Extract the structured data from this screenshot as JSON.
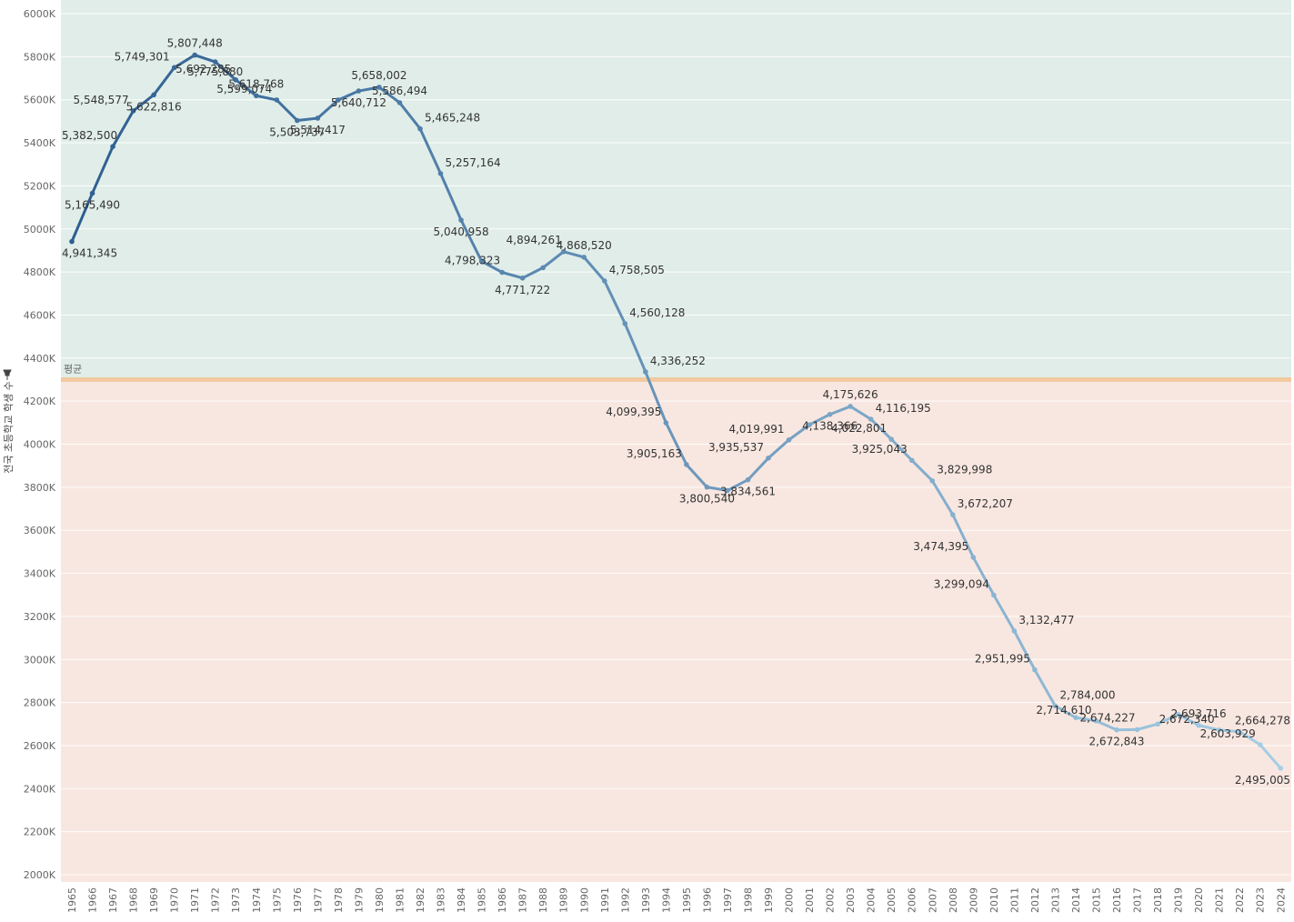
{
  "chart_data": {
    "type": "line",
    "title": "",
    "xlabel": "",
    "ylabel": "전국 초등학교 학생 수",
    "ylim": [
      2000000,
      6000000
    ],
    "reference_line": {
      "label": "평균",
      "value": 4300000
    },
    "x": [
      1965,
      1966,
      1967,
      1968,
      1969,
      1970,
      1971,
      1972,
      1973,
      1974,
      1975,
      1976,
      1977,
      1978,
      1979,
      1980,
      1981,
      1982,
      1983,
      1984,
      1985,
      1986,
      1987,
      1988,
      1989,
      1990,
      1991,
      1992,
      1993,
      1994,
      1995,
      1996,
      1997,
      1998,
      1999,
      2000,
      2001,
      2002,
      2003,
      2004,
      2005,
      2006,
      2007,
      2008,
      2009,
      2010,
      2011,
      2012,
      2013,
      2014,
      2015,
      2016,
      2017,
      2018,
      2019,
      2020,
      2021,
      2022,
      2023,
      2024
    ],
    "values": [
      4941345,
      5165490,
      5382500,
      5548577,
      5622816,
      5749301,
      5807448,
      5775880,
      5692285,
      5618768,
      5599074,
      5503737,
      5514417,
      5599000,
      5640712,
      5658002,
      5586494,
      5465248,
      5257164,
      5040958,
      4850000,
      4798323,
      4771722,
      4820000,
      4894261,
      4868520,
      4758505,
      4560128,
      4336252,
      4099395,
      3905163,
      3800540,
      3785000,
      3834561,
      3935537,
      4019991,
      4090000,
      4138366,
      4175626,
      4116195,
      4022801,
      3925043,
      3829998,
      3672207,
      3474395,
      3299094,
      3132477,
      2951995,
      2784000,
      2730000,
      2714610,
      2672843,
      2674227,
      2700000,
      2745000,
      2693716,
      2672340,
      2664278,
      2603929,
      2495005
    ],
    "labels": [
      {
        "year": 1965,
        "text": "4,941,345",
        "pos": "below"
      },
      {
        "year": 1966,
        "text": "5,165,490",
        "pos": "below"
      },
      {
        "year": 1967,
        "text": "5,382,500",
        "pos": "left"
      },
      {
        "year": 1968,
        "text": "5,548,577",
        "pos": "left"
      },
      {
        "year": 1969,
        "text": "5,622,816",
        "pos": "below"
      },
      {
        "year": 1970,
        "text": "5,749,301",
        "pos": "left"
      },
      {
        "year": 1971,
        "text": "5,807,448",
        "pos": "above"
      },
      {
        "year": 1972,
        "text": "5,775,880",
        "pos": "belowc"
      },
      {
        "year": 1973,
        "text": "5,692,285",
        "pos": "left"
      },
      {
        "year": 1974,
        "text": "5,618,768",
        "pos": "above"
      },
      {
        "year": 1975,
        "text": "5,599,074",
        "pos": "left"
      },
      {
        "year": 1976,
        "text": "5,503,737",
        "pos": "below"
      },
      {
        "year": 1977,
        "text": "5,514,417",
        "pos": "below"
      },
      {
        "year": 1979,
        "text": "5,640,712",
        "pos": "below"
      },
      {
        "year": 1980,
        "text": "5,658,002",
        "pos": "above"
      },
      {
        "year": 1981,
        "text": "5,586,494",
        "pos": "above"
      },
      {
        "year": 1982,
        "text": "5,465,248",
        "pos": "right"
      },
      {
        "year": 1983,
        "text": "5,257,164",
        "pos": "right"
      },
      {
        "year": 1984,
        "text": "5,040,958",
        "pos": "below"
      },
      {
        "year": 1986,
        "text": "4,798,323",
        "pos": "abovel"
      },
      {
        "year": 1987,
        "text": "4,771,722",
        "pos": "below"
      },
      {
        "year": 1989,
        "text": "4,894,261",
        "pos": "abovel"
      },
      {
        "year": 1990,
        "text": "4,868,520",
        "pos": "above"
      },
      {
        "year": 1991,
        "text": "4,758,505",
        "pos": "right"
      },
      {
        "year": 1992,
        "text": "4,560,128",
        "pos": "right"
      },
      {
        "year": 1993,
        "text": "4,336,252",
        "pos": "right"
      },
      {
        "year": 1994,
        "text": "4,099,395",
        "pos": "left"
      },
      {
        "year": 1995,
        "text": "3,905,163",
        "pos": "left"
      },
      {
        "year": 1996,
        "text": "3,800,540",
        "pos": "below"
      },
      {
        "year": 1998,
        "text": "3,834,561",
        "pos": "below"
      },
      {
        "year": 1999,
        "text": "3,935,537",
        "pos": "left"
      },
      {
        "year": 2000,
        "text": "4,019,991",
        "pos": "left"
      },
      {
        "year": 2002,
        "text": "4,138,366",
        "pos": "below"
      },
      {
        "year": 2003,
        "text": "4,175,626",
        "pos": "above"
      },
      {
        "year": 2004,
        "text": "4,116,195",
        "pos": "right"
      },
      {
        "year": 2005,
        "text": "4,022,801",
        "pos": "left"
      },
      {
        "year": 2006,
        "text": "3,925,043",
        "pos": "left"
      },
      {
        "year": 2007,
        "text": "3,829,998",
        "pos": "right"
      },
      {
        "year": 2008,
        "text": "3,672,207",
        "pos": "right"
      },
      {
        "year": 2009,
        "text": "3,474,395",
        "pos": "left"
      },
      {
        "year": 2010,
        "text": "3,299,094",
        "pos": "left"
      },
      {
        "year": 2011,
        "text": "3,132,477",
        "pos": "right"
      },
      {
        "year": 2012,
        "text": "2,951,995",
        "pos": "left"
      },
      {
        "year": 2013,
        "text": "2,784,000",
        "pos": "right"
      },
      {
        "year": 2015,
        "text": "2,714,610",
        "pos": "left"
      },
      {
        "year": 2016,
        "text": "2,672,843",
        "pos": "below"
      },
      {
        "year": 2017,
        "text": "2,674,227",
        "pos": "abovel"
      },
      {
        "year": 2020,
        "text": "2,693,716",
        "pos": "above"
      },
      {
        "year": 2021,
        "text": "2,672,340",
        "pos": "left"
      },
      {
        "year": 2022,
        "text": "2,664,278",
        "pos": "right"
      },
      {
        "year": 2023,
        "text": "2,603,929",
        "pos": "left"
      },
      {
        "year": 2024,
        "text": "2,495,005",
        "pos": "below"
      }
    ],
    "colors": {
      "above_band": "#e0ede9",
      "below_band": "#f8e7e0",
      "reference_line": "#f2c9a0",
      "line_start": "#2e5e91",
      "line_end": "#a7cfe6",
      "grid": "#ffffff"
    }
  }
}
